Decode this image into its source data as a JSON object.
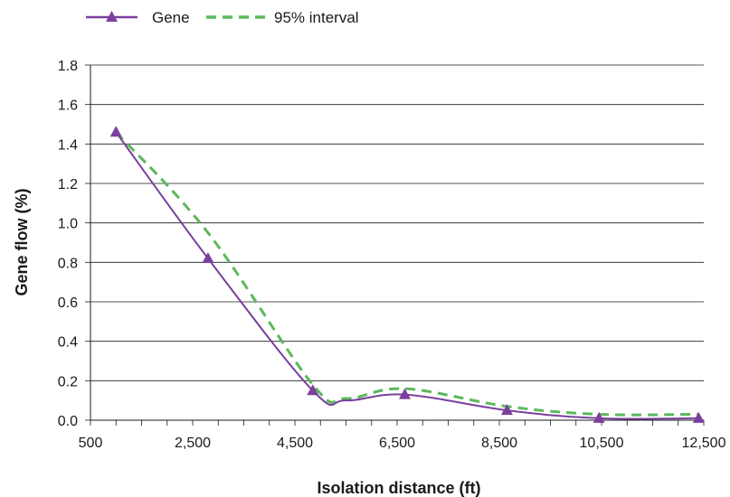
{
  "chart_data": {
    "type": "line",
    "title": "",
    "xlabel": "Isolation distance (ft)",
    "ylabel": "Gene flow (%)",
    "xlim": [
      500,
      12500
    ],
    "ylim": [
      0,
      1.8
    ],
    "x_ticks": [
      500,
      2500,
      4500,
      6500,
      8500,
      10500,
      12500
    ],
    "x_tick_labels": [
      "500",
      "2,500",
      "4,500",
      "6,500",
      "8,500",
      "10,500",
      "12,500"
    ],
    "y_ticks": [
      0,
      0.2,
      0.4,
      0.6,
      0.8,
      1.0,
      1.2,
      1.4,
      1.6,
      1.8
    ],
    "y_tick_labels": [
      "0.0",
      "0.2",
      "0.4",
      "0.6",
      "0.8",
      "1.0",
      "1.2",
      "1.4",
      "1.6",
      "1.8"
    ],
    "grid": "horizontal",
    "legend_position": "top-left",
    "series": [
      {
        "name": "Gene",
        "color": "#7b3f9e",
        "style": "solid",
        "marker": "triangle",
        "x": [
          1000,
          2800,
          4850,
          5500,
          6650,
          8650,
          10450,
          12400
        ],
        "y": [
          1.46,
          0.82,
          0.15,
          0.1,
          0.13,
          0.05,
          0.01,
          0.01
        ]
      },
      {
        "name": "95% interval",
        "color": "#5cb85c",
        "style": "dashed",
        "marker": "none",
        "x": [
          1000,
          2800,
          4850,
          5500,
          6650,
          8650,
          10450,
          12400
        ],
        "y": [
          1.46,
          0.95,
          0.18,
          0.11,
          0.16,
          0.07,
          0.03,
          0.03
        ]
      }
    ]
  }
}
